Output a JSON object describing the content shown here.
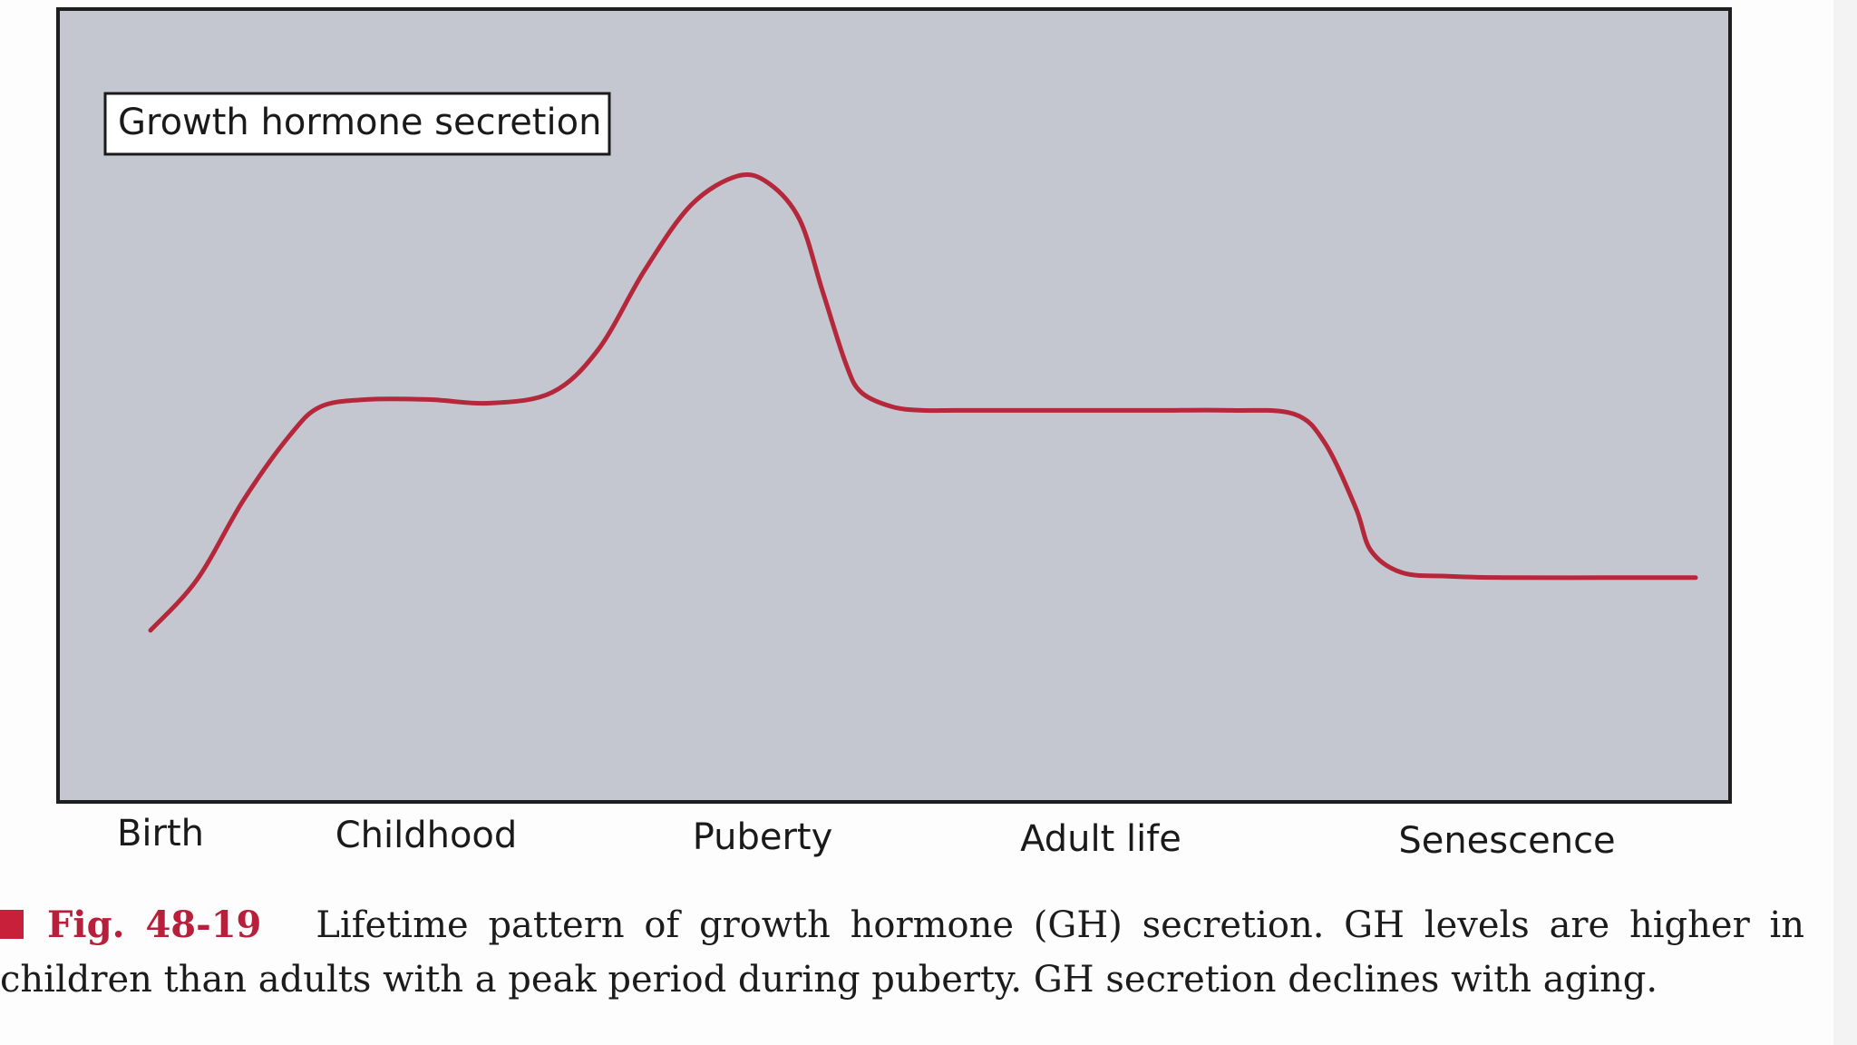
{
  "chart_data": {
    "type": "line",
    "title": "",
    "xlabel": "",
    "ylabel": "",
    "legend": {
      "label": "Growth hormone secretion",
      "placement": "top-left"
    },
    "categories": [
      "Birth",
      "Childhood",
      "Puberty",
      "Adult life",
      "Senescence"
    ],
    "colors": {
      "line": "#b5273b",
      "plot_background": "#c4c7cf",
      "frame": "#1e1e1e"
    },
    "grid": false,
    "ylim": [
      0,
      100
    ],
    "xlim": [
      0,
      100
    ],
    "series": [
      {
        "x": [
          0,
          3,
          6,
          9,
          11,
          14,
          18,
          22,
          26,
          29,
          32,
          35,
          38,
          40,
          42,
          43.5,
          45,
          46,
          48,
          50,
          52,
          55,
          60,
          65,
          70,
          74,
          76,
          78,
          79,
          81,
          84,
          88,
          94,
          100
        ],
        "values": [
          17,
          24,
          35,
          44,
          48,
          49,
          49,
          48.5,
          50,
          56,
          67,
          76,
          80,
          79,
          74,
          64,
          54,
          50,
          48,
          47.5,
          47.5,
          47.5,
          47.5,
          47.5,
          47.5,
          47,
          43,
          34,
          28,
          25,
          24.5,
          24.3,
          24.3,
          24.3
        ]
      }
    ]
  },
  "caption": {
    "figure_label": "Fig. 48-19",
    "text": "Lifetime pattern of growth hormone (GH) secretion. GH levels are higher in children than adults with a peak period during puberty. GH secretion declines with aging."
  }
}
